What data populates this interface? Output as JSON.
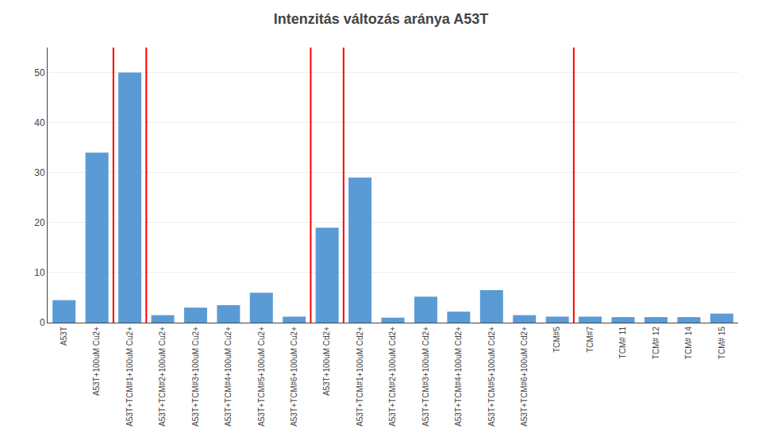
{
  "chart_data": {
    "type": "bar",
    "title": "Intenzitás változás aránya A53T",
    "categories": [
      "A53T",
      "A53T+100uM Cu2+",
      "A53T+TCM#1+100uM Cu2+",
      "A53T+TCM#2+100uM Cu2+",
      "A53T+TCM#3+100uM Cu2+",
      "A53T+TCM#4+100uM Cu2+",
      "A53T+TCM#5+100uM Cu2+",
      "A53T+TCM#6+100uM Cu2+",
      "A53T+100uM Cd2+",
      "A53T+TCM#1+100uM Cd2+",
      "A53T+TCM#2+100uM Cd2+",
      "A53T+TCM#3+100uM Cd2+",
      "A53T+TCM#4+100uM Cd2+",
      "A53T+TCM#5+100uM Cd2+",
      "A53T+TCM#6+100uM Cd2+",
      "TCM#5",
      "TCM#7",
      "TCM# 11",
      "TCM# 12",
      "TCM# 14",
      "TCM# 15"
    ],
    "values": [
      4.5,
      34,
      50,
      1.5,
      3,
      3.5,
      6,
      1.2,
      19,
      29,
      1.0,
      5.2,
      2.2,
      6.5,
      1.5,
      1.2,
      1.2,
      1.1,
      1.1,
      1.1,
      1.8
    ],
    "color": "#5B9BD5",
    "vlines": [
      1.5,
      2.5,
      7.5,
      8.5,
      15.5
    ],
    "vline_color": "red",
    "ylim": [
      0,
      55
    ],
    "yticks": [
      0,
      10,
      20,
      30,
      40,
      50
    ],
    "grid": true
  }
}
